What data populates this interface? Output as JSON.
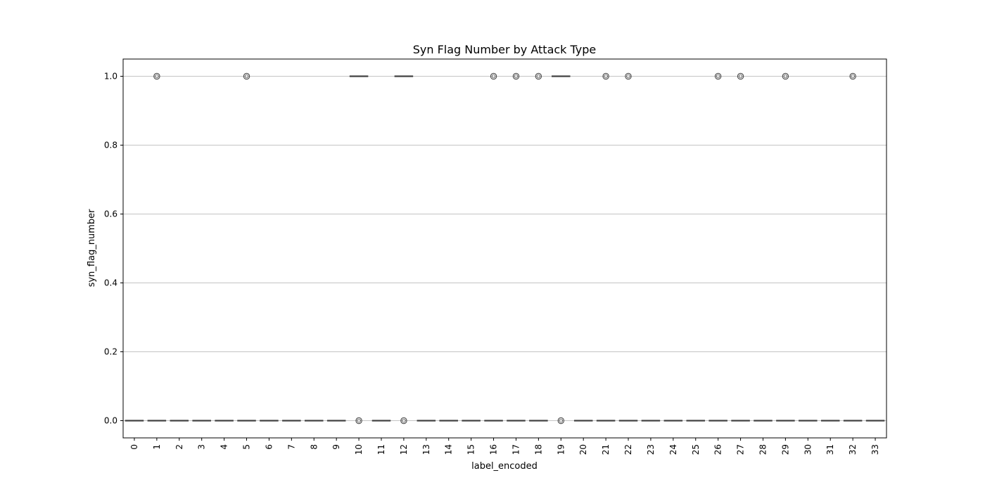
{
  "chart_data": {
    "type": "box",
    "title": "Syn Flag Number by Attack Type",
    "xlabel": "label_encoded",
    "ylabel": "syn_flag_number",
    "ylim": [
      -0.05,
      1.05
    ],
    "y_ticks": [
      "0.0",
      "0.2",
      "0.4",
      "0.6",
      "0.8",
      "1.0"
    ],
    "y_tick_values": [
      0.0,
      0.2,
      0.4,
      0.6,
      0.8,
      1.0
    ],
    "grid": "y",
    "categories": [
      "0",
      "1",
      "2",
      "3",
      "4",
      "5",
      "6",
      "7",
      "8",
      "9",
      "10",
      "11",
      "12",
      "13",
      "14",
      "15",
      "16",
      "17",
      "18",
      "19",
      "20",
      "21",
      "22",
      "23",
      "24",
      "25",
      "26",
      "27",
      "28",
      "29",
      "30",
      "31",
      "32",
      "33"
    ],
    "medians": [
      0,
      0,
      0,
      0,
      0,
      0,
      0,
      0,
      0,
      0,
      1,
      0,
      1,
      0,
      0,
      0,
      0,
      0,
      0,
      1,
      0,
      0,
      0,
      0,
      0,
      0,
      0,
      0,
      0,
      0,
      0,
      0,
      0,
      0
    ],
    "outliers": [
      [],
      [
        1
      ],
      [],
      [],
      [],
      [
        1
      ],
      [],
      [],
      [],
      [],
      [
        0
      ],
      [],
      [
        0
      ],
      [],
      [],
      [],
      [
        1
      ],
      [
        1
      ],
      [
        1
      ],
      [
        0
      ],
      [],
      [
        1
      ],
      [
        1
      ],
      [],
      [],
      [],
      [
        1
      ],
      [
        1
      ],
      [],
      [
        1
      ],
      [],
      [],
      [
        1
      ],
      []
    ],
    "box_color": "#4c72b0",
    "line_color": "#3f3f3f",
    "grid_color": "#b0b0b0"
  }
}
